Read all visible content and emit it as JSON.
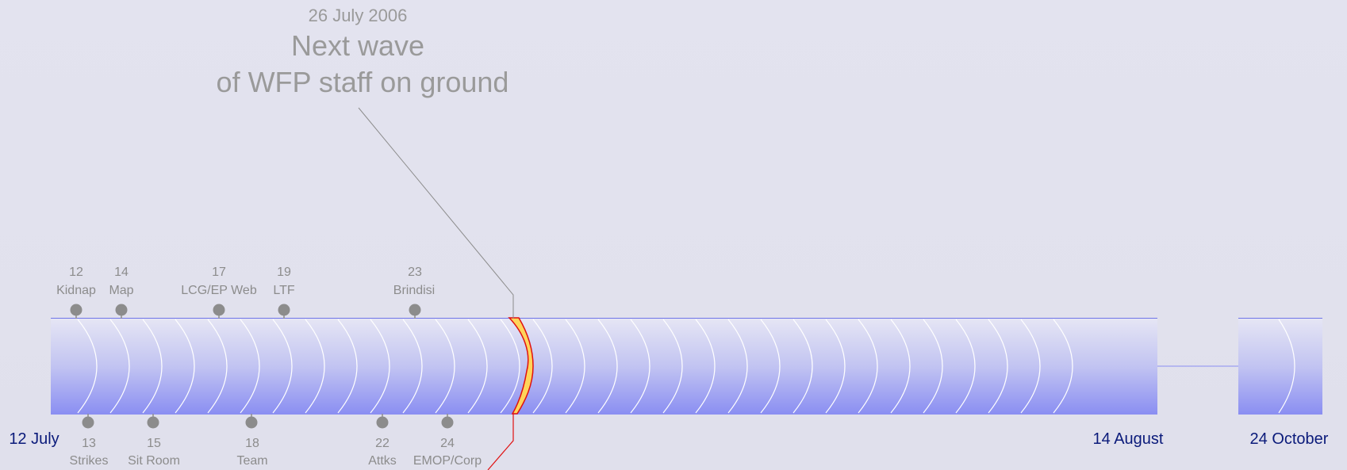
{
  "headline": {
    "date": "26 July 2006",
    "title_line1": "Next wave",
    "title_line2": "of WFP staff on ground"
  },
  "date_labels": {
    "start": "12 July",
    "mid": "14 August",
    "end": "24 October"
  },
  "events_top": [
    {
      "day": "12",
      "label": "Kidnap"
    },
    {
      "day": "14",
      "label": "Map"
    },
    {
      "day": "17",
      "label": "LCG/EP Web"
    },
    {
      "day": "19",
      "label": "LTF"
    },
    {
      "day": "23",
      "label": "Brindisi"
    }
  ],
  "events_bottom": [
    {
      "day": "13",
      "label": "Strikes"
    },
    {
      "day": "15",
      "label": "Sit Room"
    },
    {
      "day": "18",
      "label": "Team"
    },
    {
      "day": "22",
      "label": "Attks"
    },
    {
      "day": "24",
      "label": "EMOP/Corp"
    }
  ],
  "colors": {
    "bar_top": "#e6e6f4",
    "bar_bottom": "#8a8ef2",
    "highlight_fill": "#ffd45a",
    "highlight_stroke": "#e01010",
    "date_text": "#0a1a7a",
    "event_text": "#8c8c8c"
  }
}
